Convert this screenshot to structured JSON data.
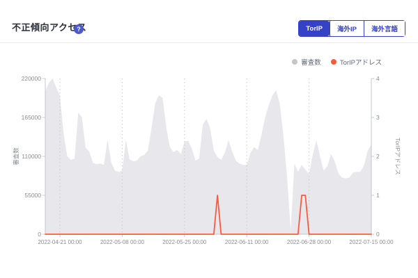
{
  "header": {
    "title": "不正傾向アクセス",
    "help_icon": "?"
  },
  "toolbar": {
    "buttons": [
      {
        "label": "TorIP",
        "active": true
      },
      {
        "label": "海外IP",
        "active": false
      },
      {
        "label": "海外言語",
        "active": false
      }
    ]
  },
  "legend": [
    {
      "label": "審査数",
      "color": "#c4c6cc"
    },
    {
      "label": "TorIPアドレス",
      "color": "#f75c3f"
    }
  ],
  "colors": {
    "accent": "#3642c5",
    "area": "#e7e7ec",
    "line": "#f75c3f",
    "axis": "#c6c7cb",
    "grid": "#c9cacd",
    "tick_text": "#8b8d92"
  },
  "chart_data": {
    "type": "area",
    "title": "不正傾向アクセス",
    "x_type": "time",
    "x_range": [
      "2022-04-17",
      "2022-07-15"
    ],
    "x_ticks": [
      {
        "date": "2022-04-21",
        "label": "2022-04-21 00:00"
      },
      {
        "date": "2022-05-08",
        "label": "2022-05-08 00:00"
      },
      {
        "date": "2022-05-25",
        "label": "2022-05-25 00:00"
      },
      {
        "date": "2022-06-11",
        "label": "2022-06-11 00:00"
      },
      {
        "date": "2022-06-28",
        "label": "2022-06-28 00:00"
      },
      {
        "date": "2022-07-15",
        "label": "2022-07-15 00:00"
      }
    ],
    "y_left": {
      "name": "審査数",
      "min": 0,
      "max": 220000,
      "ticks": [
        0,
        55000,
        110000,
        165000,
        220000
      ]
    },
    "y_right": {
      "name": "TorIPアドレス",
      "min": 0,
      "max": 4,
      "ticks": [
        0,
        1,
        2,
        3,
        4
      ]
    },
    "grid": "dotted-vertical-at-x-ticks",
    "legend_position": "top-right",
    "series": [
      {
        "name": "審査数",
        "type": "area",
        "axis": "left",
        "color": "#e7e7ec",
        "start": "2022-04-17",
        "interval_days": 1,
        "values": [
          202000,
          214000,
          220000,
          207000,
          196000,
          142000,
          110000,
          105000,
          107000,
          172000,
          165000,
          122000,
          117000,
          101000,
          99000,
          100000,
          98000,
          134000,
          101000,
          90000,
          88000,
          90000,
          133000,
          106000,
          103000,
          104000,
          110000,
          112000,
          118000,
          150000,
          185000,
          196000,
          193000,
          152000,
          123000,
          116000,
          119000,
          113000,
          131000,
          132000,
          121000,
          104000,
          107000,
          155000,
          163000,
          150000,
          118000,
          109000,
          105000,
          115000,
          133000,
          117000,
          104000,
          100000,
          98000,
          98000,
          115000,
          123000,
          119000,
          140000,
          165000,
          182000,
          196000,
          203000,
          185000,
          140000,
          80000,
          6000,
          100000,
          88000,
          98000,
          91000,
          85000,
          112000,
          133000,
          110000,
          90000,
          96000,
          113000,
          103000,
          86000,
          80000,
          79000,
          80000,
          87000,
          88000,
          88000,
          97000,
          118000,
          127000
        ]
      },
      {
        "name": "TorIPアドレス",
        "type": "line",
        "axis": "right",
        "color": "#f75c3f",
        "points": [
          [
            "2022-04-17",
            0
          ],
          [
            "2022-06-02",
            0
          ],
          [
            "2022-06-03",
            1
          ],
          [
            "2022-06-04",
            0
          ],
          [
            "2022-06-25",
            0
          ],
          [
            "2022-06-26",
            1
          ],
          [
            "2022-06-27",
            1
          ],
          [
            "2022-06-28",
            0
          ],
          [
            "2022-07-15",
            0
          ]
        ]
      }
    ]
  }
}
